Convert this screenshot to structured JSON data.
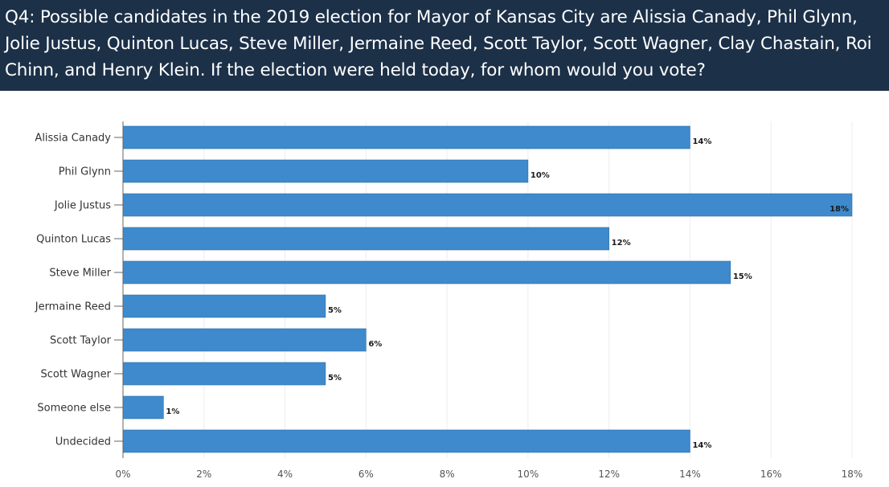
{
  "header": {
    "question": "Q4: Possible candidates in the 2019 election for Mayor of Kansas City are Alissia Canady, Phil Glynn, Jolie Justus, Quinton Lucas, Steve Miller, Jermaine Reed, Scott Taylor, Scott Wagner, Clay Chastain, Roi Chinn, and Henry Klein. If the election were held today, for whom would you vote?"
  },
  "colors": {
    "header_background": "#1c3048",
    "bar": "#3e8acc",
    "grid": "#eeeeee"
  },
  "chart_data": {
    "type": "bar",
    "orientation": "horizontal",
    "title": "",
    "xlabel": "",
    "ylabel": "",
    "categories": [
      "Alissia Canady",
      "Phil Glynn",
      "Jolie Justus",
      "Quinton Lucas",
      "Steve Miller",
      "Jermaine Reed",
      "Scott Taylor",
      "Scott Wagner",
      "Someone else",
      "Undecided"
    ],
    "values": [
      14,
      10,
      18,
      12,
      15,
      5,
      6,
      5,
      1,
      14
    ],
    "value_labels": [
      "14%",
      "10%",
      "18%",
      "12%",
      "15%",
      "5%",
      "6%",
      "5%",
      "1%",
      "14%"
    ],
    "xlim": [
      0,
      18
    ],
    "xticks": [
      0,
      2,
      4,
      6,
      8,
      10,
      12,
      14,
      16,
      18
    ],
    "xtick_labels": [
      "0%",
      "2%",
      "4%",
      "6%",
      "8%",
      "10%",
      "12%",
      "14%",
      "16%",
      "18%"
    ],
    "grid": true,
    "legend": "none"
  }
}
